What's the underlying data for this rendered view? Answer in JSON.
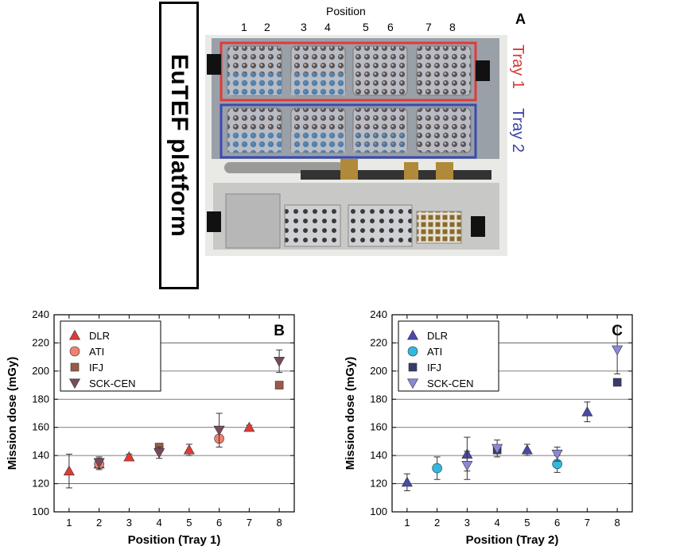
{
  "panel_a": {
    "letter": "A",
    "platform_label": "EuTEF platform",
    "position_title": "Position",
    "position_numbers": [
      "1",
      "2",
      "3",
      "4",
      "5",
      "6",
      "7",
      "8"
    ],
    "tray1_label": "Tray 1",
    "tray2_label": "Tray 2",
    "tray1_color": "#e03a3a",
    "tray2_color": "#3a4ab0"
  },
  "chart_data": [
    {
      "type": "scatter",
      "panel_letter": "B",
      "xlabel": "Position (Tray 1)",
      "ylabel": "Mission dose (mGy)",
      "xlim": [
        0.5,
        8.5
      ],
      "ylim": [
        100,
        240
      ],
      "xticks": [
        1,
        2,
        3,
        4,
        5,
        6,
        7,
        8
      ],
      "yticks": [
        100,
        120,
        140,
        160,
        180,
        200,
        220,
        240
      ],
      "grid": "horizontal",
      "legend_position": "top-left",
      "series": [
        {
          "name": "DLR",
          "marker": "triangle-up",
          "color": "#e03a34",
          "points": [
            {
              "x": 1,
              "y": 129,
              "err": 12
            },
            {
              "x": 2,
              "y": 134,
              "err": 4
            },
            {
              "x": 3,
              "y": 139,
              "err": 2
            },
            {
              "x": 5,
              "y": 144,
              "err": 4
            },
            {
              "x": 7,
              "y": 160,
              "err": 1.5
            }
          ]
        },
        {
          "name": "ATI",
          "marker": "circle",
          "color": "#f08070",
          "points": [
            {
              "x": 2,
              "y": 134,
              "err": 0
            },
            {
              "x": 6,
              "y": 152,
              "err": 0
            }
          ]
        },
        {
          "name": "IFJ",
          "marker": "square",
          "color": "#9a5a48",
          "points": [
            {
              "x": 4,
              "y": 146,
              "err": 0
            },
            {
              "x": 8,
              "y": 190,
              "err": 0
            }
          ]
        },
        {
          "name": "SCK-CEN",
          "marker": "triangle-down",
          "color": "#7a4a5a",
          "points": [
            {
              "x": 2,
              "y": 135,
              "err": 4
            },
            {
              "x": 4,
              "y": 142,
              "err": 4
            },
            {
              "x": 6,
              "y": 158,
              "err": 12
            },
            {
              "x": 8,
              "y": 207,
              "err": 8
            }
          ]
        }
      ]
    },
    {
      "type": "scatter",
      "panel_letter": "C",
      "xlabel": "Position (Tray 2)",
      "ylabel": "Mission dose (mGy)",
      "xlim": [
        0.5,
        8.5
      ],
      "ylim": [
        100,
        240
      ],
      "xticks": [
        1,
        2,
        3,
        4,
        5,
        6,
        7,
        8
      ],
      "yticks": [
        100,
        120,
        140,
        160,
        180,
        200,
        220,
        240
      ],
      "grid": "horizontal",
      "legend_position": "top-left",
      "series": [
        {
          "name": "DLR",
          "marker": "triangle-up",
          "color": "#4a48a8",
          "points": [
            {
              "x": 1,
              "y": 121,
              "err": 6
            },
            {
              "x": 3,
              "y": 141,
              "err": 12
            },
            {
              "x": 5,
              "y": 144,
              "err": 4
            },
            {
              "x": 7,
              "y": 171,
              "err": 7
            }
          ]
        },
        {
          "name": "ATI",
          "marker": "circle",
          "color": "#30b8e0",
          "points": [
            {
              "x": 2,
              "y": 131,
              "err": 8
            },
            {
              "x": 6,
              "y": 134,
              "err": 6
            }
          ]
        },
        {
          "name": "IFJ",
          "marker": "square",
          "color": "#3a3a6a",
          "points": [
            {
              "x": 4,
              "y": 144,
              "err": 0
            },
            {
              "x": 8,
              "y": 192,
              "err": 0
            }
          ]
        },
        {
          "name": "SCK-CEN",
          "marker": "triangle-down",
          "color": "#8a88d8",
          "points": [
            {
              "x": 3,
              "y": 133,
              "err": 10
            },
            {
              "x": 4,
              "y": 145,
              "err": 6
            },
            {
              "x": 6,
              "y": 141,
              "err": 5
            },
            {
              "x": 8,
              "y": 215,
              "err": 17
            }
          ]
        }
      ]
    }
  ]
}
